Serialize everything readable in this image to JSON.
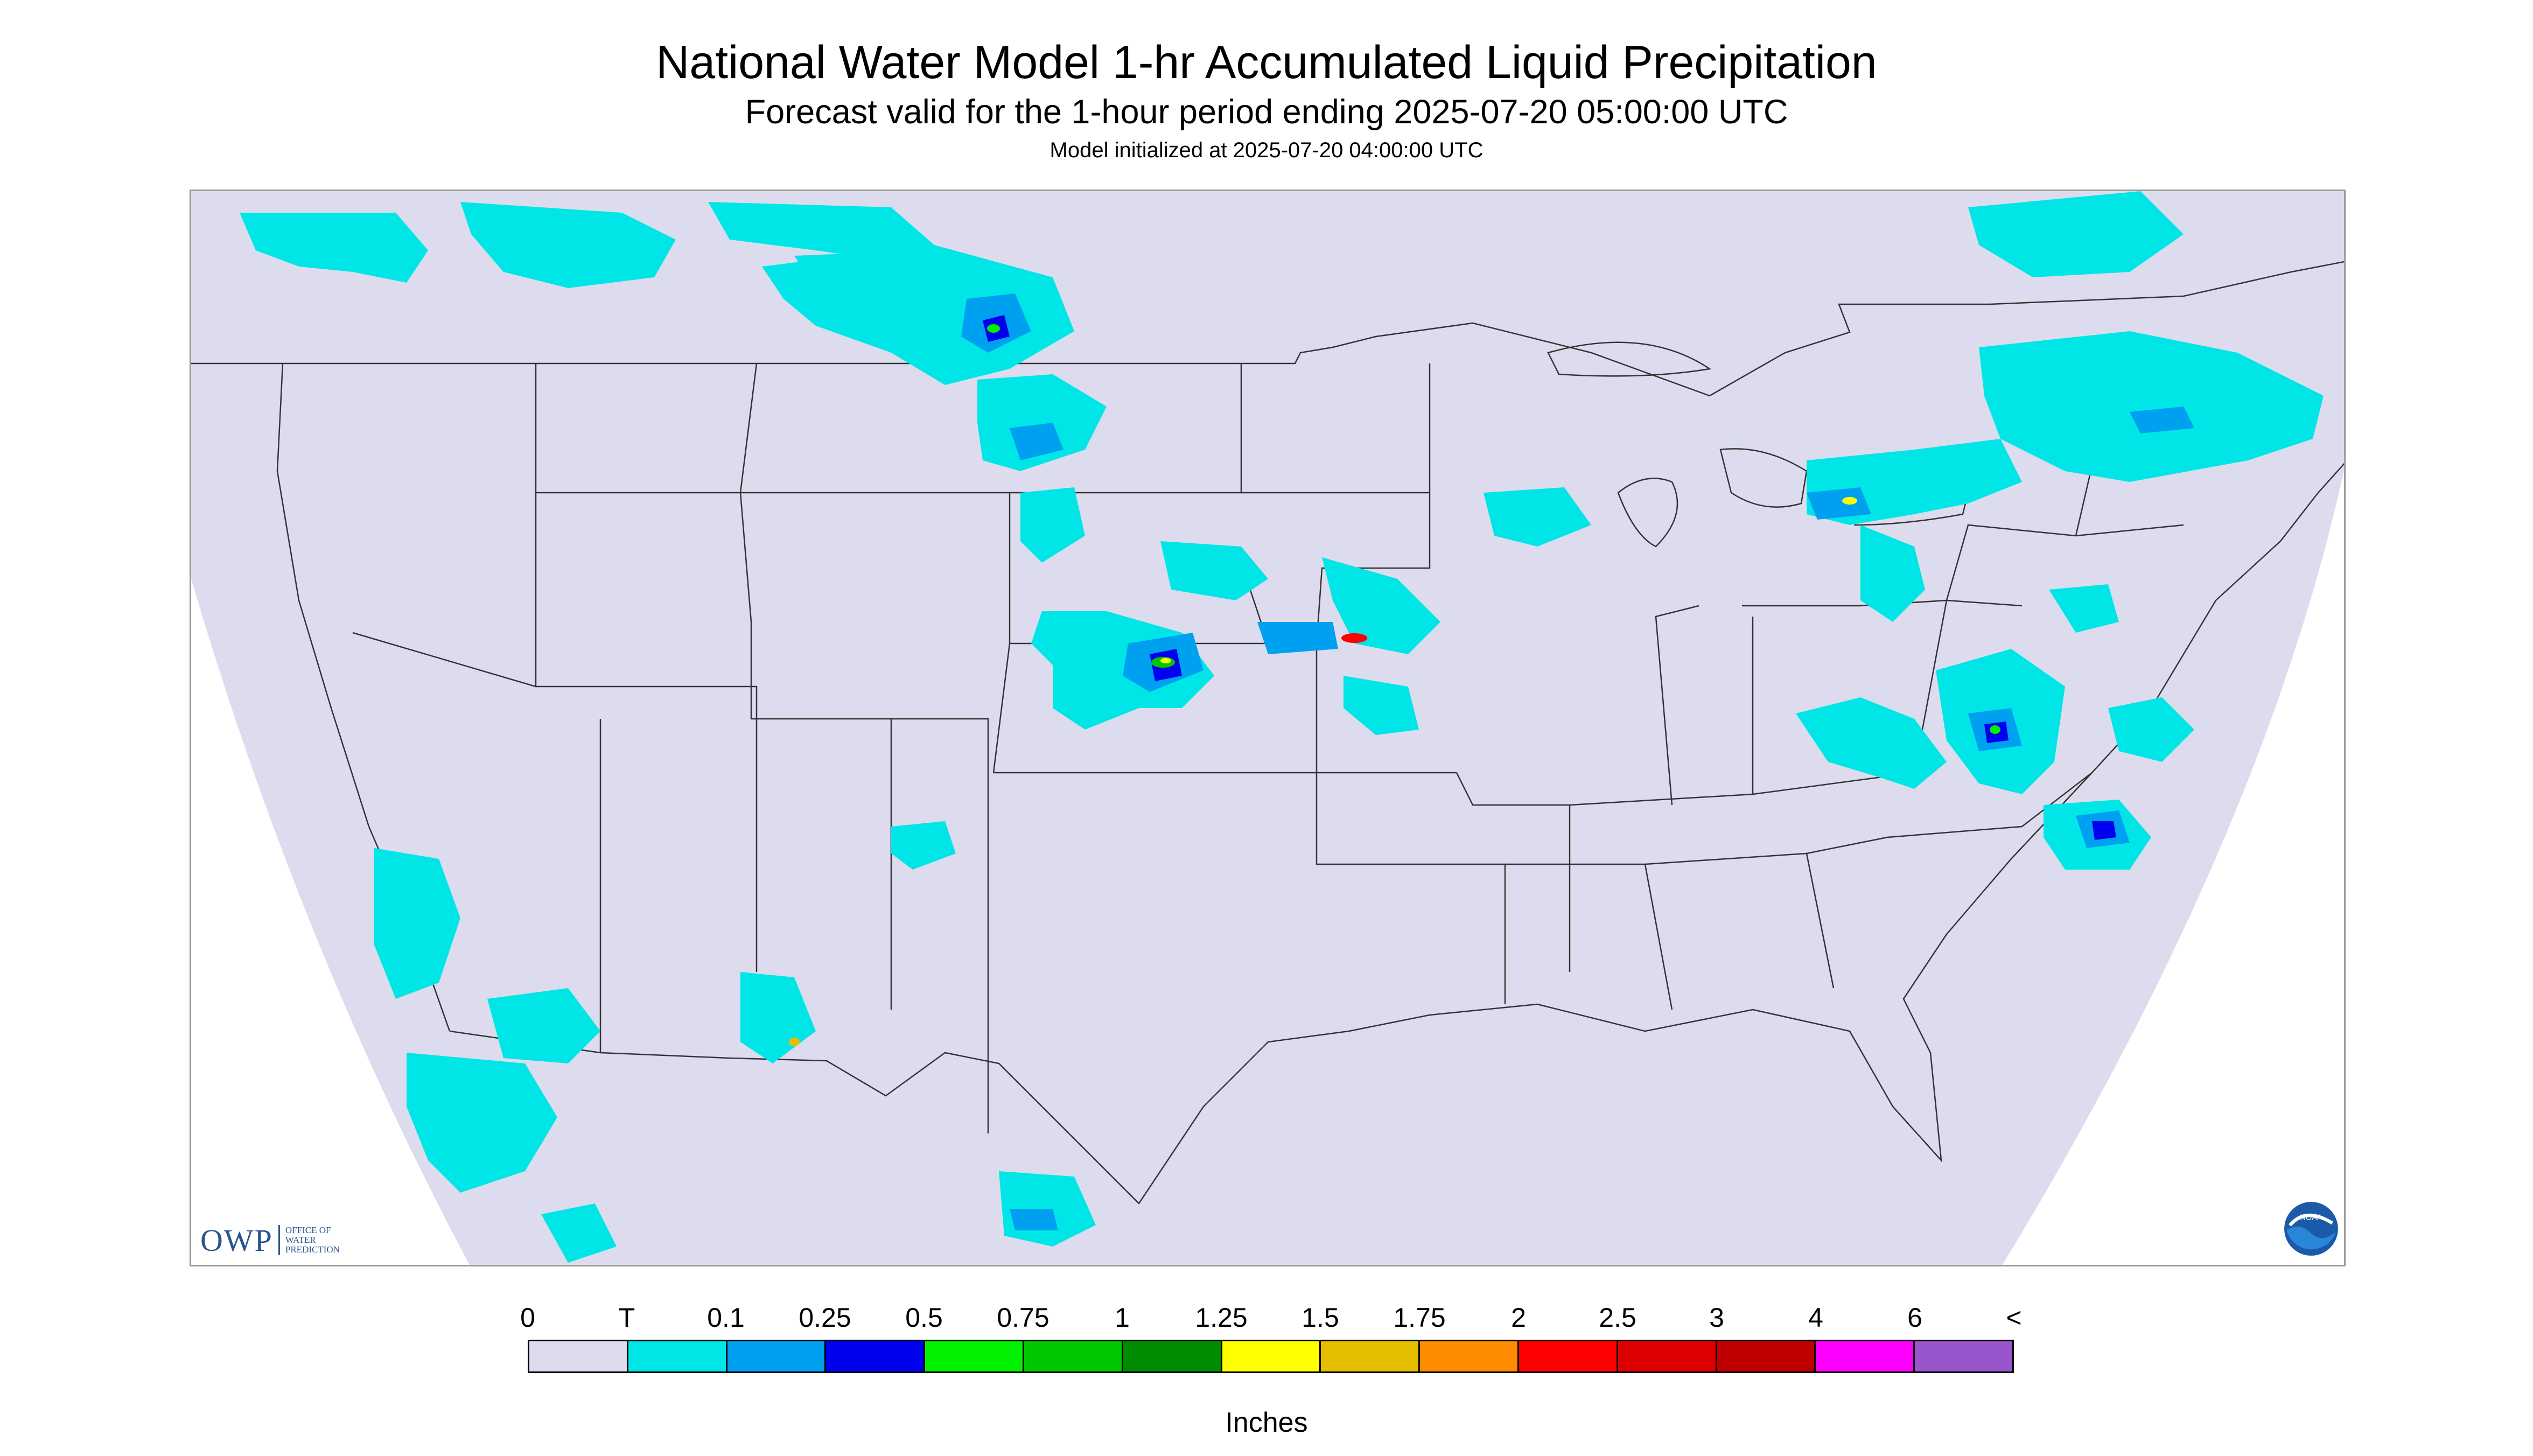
{
  "header": {
    "title": "National Water Model 1-hr Accumulated Liquid Precipitation",
    "subtitle": "Forecast valid for the 1-hour period ending 2025-07-20 05:00:00 UTC",
    "init": "Model initialized at 2025-07-20 04:00:00 UTC"
  },
  "map": {
    "domain_color": "#dcdcee",
    "outside_color": "#ffffff",
    "border_color": "#333333"
  },
  "logos": {
    "owp": {
      "mark": "OWP",
      "text": "OFFICE OF\nWATER\nPREDICTION",
      "color": "#28558e"
    },
    "noaa": {
      "icon": "noaa-logo-icon",
      "text": "NOAA"
    }
  },
  "legend": {
    "labels": [
      "0",
      "T",
      "0.1",
      "0.25",
      "0.5",
      "0.75",
      "1",
      "1.25",
      "1.5",
      "1.75",
      "2",
      "2.5",
      "3",
      "4",
      "6",
      "<"
    ],
    "colors": [
      "#dcdcee",
      "#00e6e6",
      "#00a0f0",
      "#0000f0",
      "#00f000",
      "#00c800",
      "#008c00",
      "#ffff00",
      "#e6be00",
      "#ff8c00",
      "#ff0000",
      "#dc0000",
      "#c00000",
      "#ff00ff",
      "#9955cc"
    ],
    "units": "Inches"
  }
}
